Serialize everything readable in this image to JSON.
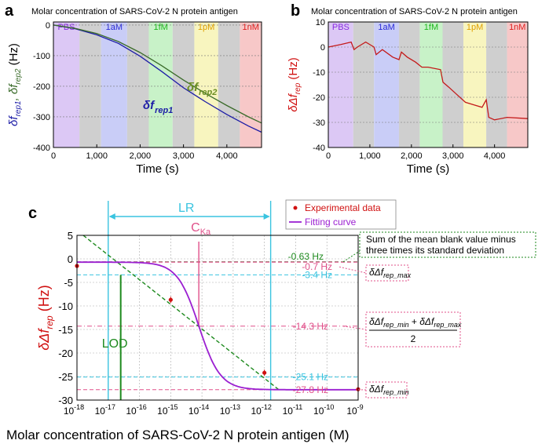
{
  "chart_data": [
    {
      "panel": "a",
      "type": "line",
      "title": "Molar concentration of SARS-CoV-2 N protein antigen",
      "xlabel": "Time (s)",
      "ylabel_parts": [
        "δf",
        "rep1",
        ", δf",
        "rep2",
        " (Hz)"
      ],
      "xlim": [
        0,
        4800
      ],
      "ylim": [
        -400,
        10
      ],
      "xticks": [
        0,
        1000,
        2000,
        3000,
        4000
      ],
      "xtick_labels": [
        "0",
        "1,000",
        "2,000",
        "3,000",
        "4,000"
      ],
      "yticks": [
        0,
        -100,
        -200,
        -300,
        -400
      ],
      "ytick_labels": [
        "0",
        "-100",
        "-200",
        "-300",
        "-400"
      ],
      "bands": [
        {
          "label": "PBS",
          "x": [
            0,
            600
          ],
          "color": "#dcc8f5",
          "text_color": "#8a2be2"
        },
        {
          "label": "",
          "x": [
            600,
            1100
          ],
          "color": "#cfcfcf"
        },
        {
          "label": "1aM",
          "x": [
            1100,
            1700
          ],
          "color": "#c9cdf7",
          "text_color": "#2a2ad8"
        },
        {
          "label": "",
          "x": [
            1700,
            2200
          ],
          "color": "#cfcfcf"
        },
        {
          "label": "1fM",
          "x": [
            2200,
            2750
          ],
          "color": "#c8f2c8",
          "text_color": "#1db81d"
        },
        {
          "label": "",
          "x": [
            2750,
            3250
          ],
          "color": "#cfcfcf"
        },
        {
          "label": "1pM",
          "x": [
            3250,
            3800
          ],
          "color": "#f8f5bf",
          "text_color": "#e0a000"
        },
        {
          "label": "",
          "x": [
            3800,
            4300
          ],
          "color": "#cfcfcf"
        },
        {
          "label": "1nM",
          "x": [
            4300,
            4800
          ],
          "color": "#f7c8c8",
          "text_color": "#e02020"
        }
      ],
      "series": [
        {
          "name": "δf",
          "sub": "rep1",
          "color": "#1c1ca6",
          "x": [
            0,
            500,
            1000,
            1500,
            2000,
            2500,
            3000,
            3500,
            4000,
            4500,
            4800
          ],
          "y": [
            0,
            -12,
            -32,
            -60,
            -102,
            -152,
            -205,
            -250,
            -292,
            -330,
            -350
          ]
        },
        {
          "name": "δf",
          "sub": "rep2",
          "color": "#3a6b2a",
          "x": [
            0,
            500,
            1000,
            1500,
            2000,
            2500,
            3000,
            3500,
            4000,
            4500,
            4800
          ],
          "y": [
            0,
            -11,
            -28,
            -54,
            -90,
            -133,
            -180,
            -223,
            -263,
            -300,
            -320
          ]
        }
      ]
    },
    {
      "panel": "b",
      "type": "line",
      "title": "Molar concentration of SARS-CoV-2 N protein antigen",
      "xlabel": "Time (s)",
      "ylabel_parts": [
        "δΔf",
        "rep",
        " (Hz)"
      ],
      "xlim": [
        0,
        4800
      ],
      "ylim": [
        -40,
        10
      ],
      "xticks": [
        0,
        1000,
        2000,
        3000,
        4000
      ],
      "xtick_labels": [
        "0",
        "1,000",
        "2,000",
        "3,000",
        "4,000"
      ],
      "yticks": [
        10,
        0,
        -10,
        -20,
        -30,
        -40
      ],
      "ytick_labels": [
        "10",
        "0",
        "-10",
        "-20",
        "-30",
        "-40"
      ],
      "bands": [
        {
          "label": "PBS",
          "x": [
            0,
            600
          ],
          "color": "#dcc8f5",
          "text_color": "#8a2be2"
        },
        {
          "label": "",
          "x": [
            600,
            1100
          ],
          "color": "#cfcfcf"
        },
        {
          "label": "1aM",
          "x": [
            1100,
            1700
          ],
          "color": "#c9cdf7",
          "text_color": "#2a2ad8"
        },
        {
          "label": "",
          "x": [
            1700,
            2200
          ],
          "color": "#cfcfcf"
        },
        {
          "label": "1fM",
          "x": [
            2200,
            2750
          ],
          "color": "#c8f2c8",
          "text_color": "#1db81d"
        },
        {
          "label": "",
          "x": [
            2750,
            3250
          ],
          "color": "#cfcfcf"
        },
        {
          "label": "1pM",
          "x": [
            3250,
            3800
          ],
          "color": "#f8f5bf",
          "text_color": "#e0a000"
        },
        {
          "label": "",
          "x": [
            3800,
            4300
          ],
          "color": "#cfcfcf"
        },
        {
          "label": "1nM",
          "x": [
            4300,
            4800
          ],
          "color": "#f7c8c8",
          "text_color": "#e02020"
        }
      ],
      "series": [
        {
          "name": "δΔf",
          "sub": "rep",
          "color": "#c41a1a",
          "x": [
            0,
            300,
            550,
            620,
            700,
            900,
            1100,
            1150,
            1300,
            1550,
            1700,
            1760,
            1900,
            2100,
            2250,
            2400,
            2700,
            2760,
            2900,
            3100,
            3300,
            3500,
            3700,
            3800,
            3860,
            4000,
            4300,
            4800
          ],
          "y": [
            0,
            1,
            2,
            -1,
            0,
            2,
            0,
            -3,
            -1,
            -4,
            -5,
            -2,
            -4,
            -6,
            -8,
            -8,
            -9,
            -14,
            -16,
            -19,
            -22,
            -23,
            -24,
            -21,
            -28,
            -29,
            -28,
            -28.5
          ]
        }
      ]
    },
    {
      "panel": "c",
      "type": "scatter",
      "xlabel": "Molar concentration of SARS-CoV-2 N protein antigen (M)",
      "ylabel_parts": [
        "δΔf",
        "rep",
        " (Hz)"
      ],
      "xscale": "log",
      "xlim": [
        -18,
        -9
      ],
      "ylim": [
        -30,
        5
      ],
      "xtick_exponents": [
        -18,
        -17,
        -16,
        -15,
        -14,
        -13,
        -12,
        -11,
        -10,
        -9
      ],
      "yticks": [
        5,
        0,
        -5,
        -10,
        -15,
        -20,
        -25,
        -30
      ],
      "ytick_labels": [
        "5",
        "0",
        "-5",
        "-10",
        "-15",
        "-20",
        "-25",
        "-30"
      ],
      "legend": {
        "position": "top-right",
        "entries": [
          "Experimental data",
          "Fitting curve"
        ]
      },
      "experimental": {
        "log_x": [
          -18,
          -15,
          -12,
          -9
        ],
        "y": [
          -1.5,
          -8.7,
          -24.2,
          -27.7
        ],
        "color": "#d01010"
      },
      "fitting_curve": {
        "top": -0.7,
        "bottom": -27.8,
        "log_c_ka": -14.1,
        "hill": 0.55,
        "color": "#9b1fd1"
      },
      "tangent": {
        "log_x": [
          -17.8,
          -11.5
        ],
        "y": [
          5,
          -28
        ],
        "color": "#1e8a1e"
      },
      "hlines": [
        {
          "y": -0.63,
          "label": "-0.63 Hz",
          "color": "#6b5a3a",
          "label_color": "#1e8a1e",
          "style": "dash"
        },
        {
          "y": -0.7,
          "label": "-0.7 Hz",
          "color": "#e0508a",
          "label_color": "#e0508a",
          "style": "dash"
        },
        {
          "y": -3.4,
          "label": "-3.4 Hz",
          "color": "#3ac4e0",
          "label_color": "#3ac4e0",
          "style": "dash"
        },
        {
          "y": -14.3,
          "label": "-14.3 Hz",
          "color": "#e0508a",
          "label_color": "#e0508a",
          "style": "dashdot"
        },
        {
          "y": -25.1,
          "label": "-25.1 Hz",
          "color": "#3ac4e0",
          "label_color": "#3ac4e0",
          "style": "dash"
        },
        {
          "y": -27.8,
          "label": "-27.8 Hz",
          "color": "#e0508a",
          "label_color": "#e0508a",
          "style": "dash"
        }
      ],
      "vlines": [
        {
          "log_x": -16.6,
          "label": "LOD",
          "color": "#1e8a1e"
        },
        {
          "log_x": -14.1,
          "label": "C",
          "sub": "Ka",
          "color": "#e0508a"
        }
      ],
      "lr": {
        "label": "LR",
        "log_x": [
          -17.0,
          -11.8
        ],
        "color": "#3ac4e0"
      },
      "notes": {
        "blank_line1": "Sum of the mean blank value minus",
        "blank_line2": "three times its standard deviation",
        "delta": "δΔf",
        "max_sub": "rep_max",
        "min_sub": "rep_min",
        "mid_denominator": "2",
        "plus": "+"
      }
    }
  ],
  "panel_labels": [
    "a",
    "b",
    "c"
  ]
}
